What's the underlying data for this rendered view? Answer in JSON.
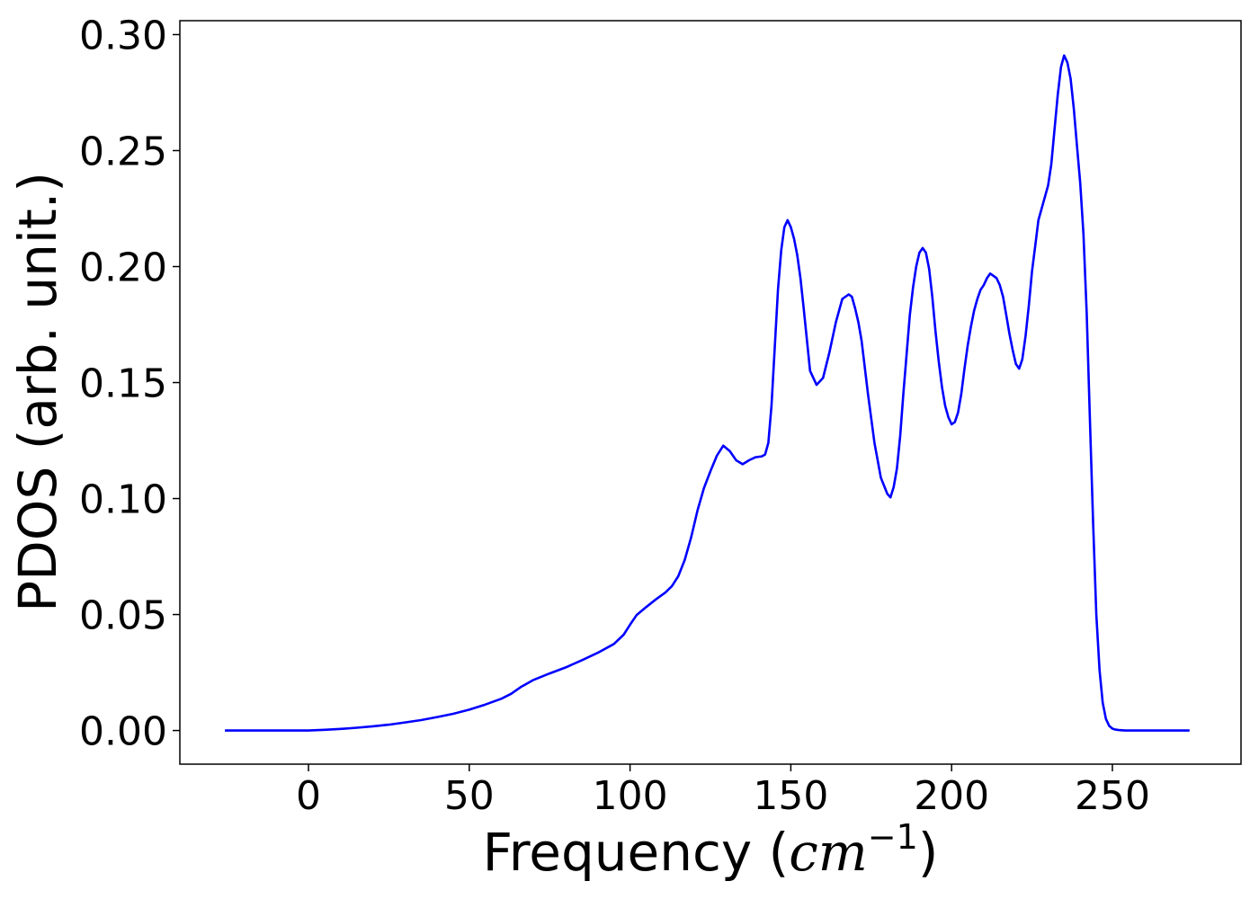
{
  "chart_data": {
    "type": "line",
    "xlabel_prefix": "Frequency (",
    "xlabel_math": "cm",
    "xlabel_sup": "−1",
    "xlabel_suffix": ")",
    "ylabel": "PDOS (arb. unit.)",
    "xlim": [
      -40,
      290
    ],
    "ylim": [
      -0.0145,
      0.306
    ],
    "x_ticks": [
      0,
      50,
      100,
      150,
      200,
      250
    ],
    "x_tick_labels": [
      "0",
      "50",
      "100",
      "150",
      "200",
      "250"
    ],
    "y_ticks": [
      0.0,
      0.05,
      0.1,
      0.15,
      0.2,
      0.25,
      0.3
    ],
    "y_tick_labels": [
      "0.00",
      "0.05",
      "0.10",
      "0.15",
      "0.20",
      "0.25",
      "0.30"
    ],
    "grid": false,
    "series": [
      {
        "color": "#0000ff",
        "x": [
          -26,
          0,
          5,
          10,
          15,
          20,
          25,
          30,
          35,
          40,
          45,
          50,
          55,
          60,
          63,
          66,
          70,
          75,
          80,
          85,
          90,
          95,
          98,
          100,
          102,
          105,
          108,
          111,
          113,
          115,
          117,
          119,
          121,
          123,
          125,
          127,
          129,
          131,
          133,
          135,
          137,
          139,
          141,
          142,
          143,
          144,
          145,
          146,
          147,
          148,
          149,
          150,
          151,
          152,
          153,
          154,
          156,
          158,
          160,
          162,
          164,
          166,
          168,
          169,
          170,
          171,
          172,
          174,
          176,
          178,
          180,
          181,
          182,
          183,
          184,
          185,
          186,
          187,
          188,
          189,
          190,
          191,
          192,
          193,
          194,
          195,
          196,
          197,
          198,
          199,
          200,
          201,
          202,
          203,
          204,
          205,
          206,
          207,
          208,
          209,
          210,
          211,
          212,
          213,
          214,
          215,
          216,
          217,
          218,
          219,
          220,
          221,
          222,
          223,
          224,
          225,
          226,
          227,
          228,
          229,
          230,
          231,
          232,
          233,
          234,
          235,
          236,
          237,
          238,
          239,
          240,
          241,
          242,
          243,
          244,
          245,
          246,
          247,
          248,
          249,
          250,
          251,
          252,
          253,
          254,
          255,
          256,
          258,
          260,
          265,
          270,
          274
        ],
        "y": [
          0,
          0,
          0.0003,
          0.0007,
          0.0012,
          0.0018,
          0.0025,
          0.0035,
          0.0045,
          0.0058,
          0.0072,
          0.009,
          0.0112,
          0.0137,
          0.0158,
          0.0187,
          0.0218,
          0.0246,
          0.0272,
          0.0303,
          0.0335,
          0.0373,
          0.0413,
          0.0456,
          0.0497,
          0.0532,
          0.0565,
          0.0595,
          0.0622,
          0.0665,
          0.0735,
          0.0832,
          0.095,
          0.1045,
          0.1118,
          0.1185,
          0.1228,
          0.1205,
          0.1165,
          0.1148,
          0.1165,
          0.1178,
          0.1182,
          0.119,
          0.124,
          0.14,
          0.165,
          0.19,
          0.207,
          0.217,
          0.22,
          0.217,
          0.212,
          0.205,
          0.195,
          0.182,
          0.155,
          0.149,
          0.152,
          0.163,
          0.176,
          0.186,
          0.188,
          0.187,
          0.182,
          0.176,
          0.168,
          0.145,
          0.124,
          0.109,
          0.102,
          0.1005,
          0.105,
          0.113,
          0.127,
          0.145,
          0.162,
          0.179,
          0.191,
          0.2,
          0.206,
          0.208,
          0.206,
          0.199,
          0.187,
          0.172,
          0.159,
          0.148,
          0.14,
          0.135,
          0.132,
          0.133,
          0.137,
          0.145,
          0.156,
          0.166,
          0.174,
          0.181,
          0.186,
          0.19,
          0.192,
          0.195,
          0.197,
          0.196,
          0.195,
          0.192,
          0.187,
          0.179,
          0.171,
          0.164,
          0.158,
          0.156,
          0.16,
          0.17,
          0.183,
          0.198,
          0.209,
          0.22,
          0.225,
          0.23,
          0.235,
          0.244,
          0.259,
          0.274,
          0.286,
          0.291,
          0.288,
          0.281,
          0.268,
          0.252,
          0.236,
          0.214,
          0.18,
          0.135,
          0.09,
          0.05,
          0.026,
          0.012,
          0.005,
          0.002,
          0.0008,
          0.0004,
          0.0002,
          0.0001,
          0,
          0,
          0,
          0,
          0,
          0,
          0,
          0
        ]
      }
    ]
  }
}
